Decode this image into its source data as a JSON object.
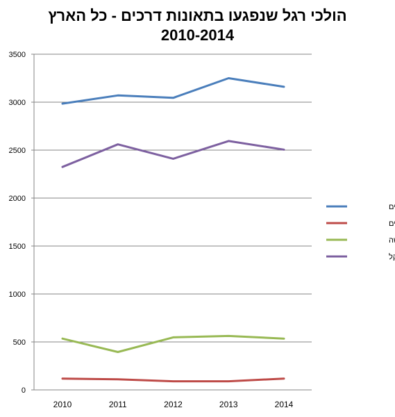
{
  "chart_data": {
    "type": "line",
    "title_line1": "הולכי רגל שנפגעו בתאונות דרכים - כל הארץ",
    "title_line2": "2010-2014",
    "categories": [
      "2010",
      "2011",
      "2012",
      "2013",
      "2014"
    ],
    "ylim": [
      0,
      3500
    ],
    "yticks": [
      0,
      500,
      1000,
      1500,
      2000,
      2500,
      3000,
      3500
    ],
    "grid": true,
    "legend_position": "right",
    "series": [
      {
        "name": "סה\"כ נפגעים",
        "color": "#4a7ebb",
        "values": [
          2985,
          3070,
          3045,
          3250,
          3160
        ]
      },
      {
        "name": "הרוגים",
        "color": "#be4b48",
        "values": [
          118,
          110,
          90,
          90,
          118
        ]
      },
      {
        "name": "פצועים קשה",
        "color": "#98b954",
        "values": [
          535,
          395,
          548,
          562,
          535
        ]
      },
      {
        "name": "פצועים קל",
        "color": "#7d60a0",
        "values": [
          2325,
          2560,
          2410,
          2595,
          2505
        ]
      }
    ]
  }
}
